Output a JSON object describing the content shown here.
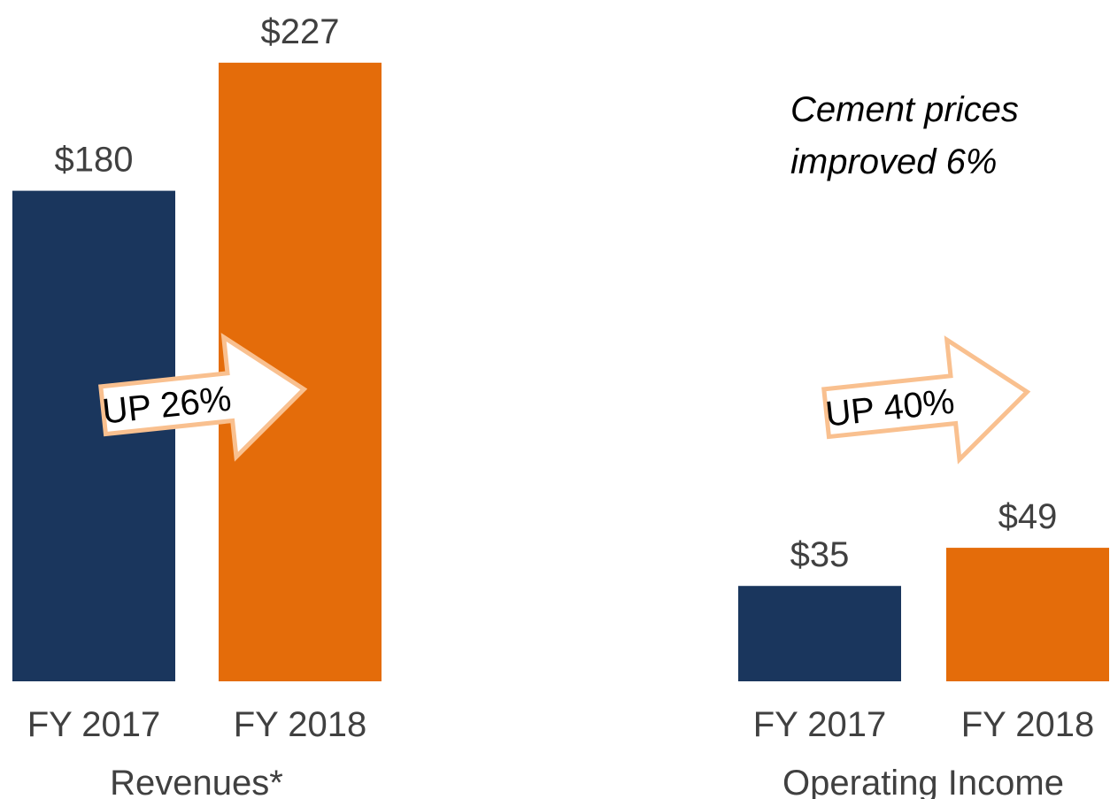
{
  "chart_data": [
    {
      "type": "bar",
      "xlabel": "Revenues*",
      "categories": [
        "FY 2017",
        "FY 2018"
      ],
      "values": [
        180,
        227
      ],
      "value_labels": [
        "$180",
        "$227"
      ],
      "colors": [
        "#1a365d",
        "#e46c0a"
      ],
      "annotation": "UP 26%"
    },
    {
      "type": "bar",
      "xlabel": "Operating Income",
      "categories": [
        "FY 2017",
        "FY 2018"
      ],
      "values": [
        35,
        49
      ],
      "value_labels": [
        "$35",
        "$49"
      ],
      "colors": [
        "#1a365d",
        "#e46c0a"
      ],
      "annotation": "UP 40%",
      "note": [
        "Cement prices",
        "improved 6%"
      ]
    }
  ]
}
